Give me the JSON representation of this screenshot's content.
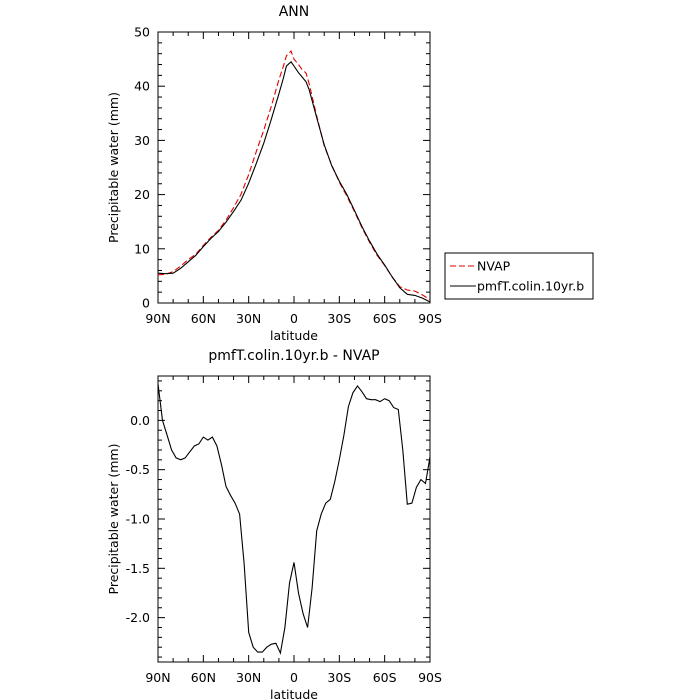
{
  "chart_data": [
    {
      "type": "line",
      "title": "ANN",
      "xlabel": "latitude",
      "ylabel": "Precipitable water  (mm)",
      "xlim": [
        90,
        -90
      ],
      "ylim": [
        0,
        50
      ],
      "x_ticks": [
        90,
        60,
        30,
        0,
        -30,
        -60,
        -90
      ],
      "x_tick_labels": [
        "90N",
        "60N",
        "30N",
        "0",
        "30S",
        "60S",
        "90S"
      ],
      "y_ticks": [
        0,
        10,
        20,
        30,
        40,
        50
      ],
      "y_tick_labels": [
        "0",
        "10",
        "20",
        "30",
        "40",
        "50"
      ],
      "legend": {
        "position": "right",
        "entries": [
          "NVAP",
          "pmfT.colin.10yr.b"
        ]
      },
      "series": [
        {
          "name": "NVAP",
          "color": "#e00000",
          "dash": "dashed",
          "x": [
            90,
            85,
            80,
            75,
            70,
            65,
            60,
            55,
            50,
            45,
            40,
            35,
            30,
            25,
            20,
            15,
            10,
            7,
            5,
            2,
            0,
            -3,
            -5,
            -8,
            -10,
            -15,
            -20,
            -25,
            -30,
            -35,
            -40,
            -45,
            -50,
            -55,
            -60,
            -65,
            -70,
            -75,
            -80,
            -85,
            -90
          ],
          "values": [
            5.2,
            5.3,
            5.8,
            6.8,
            8.0,
            9.0,
            10.6,
            12.1,
            13.4,
            15.3,
            17.6,
            20.1,
            23.7,
            27.9,
            31.9,
            36.3,
            41.2,
            43.7,
            45.6,
            46.5,
            45.0,
            44.0,
            43.2,
            42.4,
            40.5,
            34.5,
            29.0,
            25.4,
            22.3,
            19.7,
            16.9,
            13.9,
            11.2,
            8.8,
            6.9,
            4.8,
            3.0,
            2.4,
            2.2,
            1.5,
            0.6
          ]
        },
        {
          "name": "pmfT.colin.10yr.b",
          "color": "#000000",
          "dash": "solid",
          "x": [
            90,
            85,
            80,
            75,
            70,
            65,
            60,
            55,
            50,
            45,
            40,
            35,
            30,
            25,
            20,
            15,
            10,
            7,
            5,
            2,
            0,
            -3,
            -5,
            -8,
            -10,
            -15,
            -20,
            -25,
            -30,
            -35,
            -40,
            -45,
            -50,
            -55,
            -60,
            -65,
            -70,
            -75,
            -80,
            -85,
            -90
          ],
          "values": [
            5.5,
            5.4,
            5.5,
            6.4,
            7.6,
            8.8,
            10.4,
            11.9,
            13.2,
            14.9,
            16.9,
            19.0,
            22.1,
            25.7,
            29.5,
            33.9,
            38.6,
            41.5,
            43.7,
            44.5,
            43.7,
            42.5,
            41.8,
            40.8,
            39.4,
            34.2,
            29.2,
            25.3,
            22.5,
            20.0,
            17.1,
            14.1,
            11.4,
            9.0,
            7.0,
            4.8,
            2.8,
            1.6,
            1.4,
            0.9,
            0.2
          ]
        }
      ]
    },
    {
      "type": "line",
      "title": "pmfT.colin.10yr.b  -  NVAP",
      "xlabel": "latitude",
      "ylabel": "Precipitable water  (mm)",
      "xlim": [
        90,
        -90
      ],
      "ylim": [
        -2.45,
        0.45
      ],
      "x_ticks": [
        90,
        60,
        30,
        0,
        -30,
        -60,
        -90
      ],
      "x_tick_labels": [
        "90N",
        "60N",
        "30N",
        "0",
        "30S",
        "60S",
        "90S"
      ],
      "y_ticks": [
        0.0,
        -0.5,
        -1.0,
        -1.5,
        -2.0
      ],
      "y_tick_labels": [
        "0.0",
        "-0.5",
        "-1.0",
        "-1.5",
        "-2.0"
      ],
      "series": [
        {
          "color": "#000000",
          "dash": "solid",
          "x": [
            90,
            87,
            84,
            81,
            78,
            75,
            72,
            69,
            66,
            63,
            60,
            57,
            54,
            51,
            48,
            45,
            42,
            39,
            36,
            33,
            30,
            27,
            24,
            21,
            18,
            15,
            12,
            9,
            6,
            3,
            0,
            -3,
            -6,
            -9,
            -12,
            -15,
            -18,
            -21,
            -24,
            -27,
            -30,
            -33,
            -36,
            -39,
            -42,
            -45,
            -48,
            -51,
            -54,
            -57,
            -60,
            -63,
            -66,
            -69,
            -72,
            -75,
            -78,
            -81,
            -84,
            -87,
            -90
          ],
          "values": [
            0.37,
            0.0,
            -0.15,
            -0.3,
            -0.38,
            -0.4,
            -0.38,
            -0.32,
            -0.26,
            -0.24,
            -0.17,
            -0.2,
            -0.17,
            -0.26,
            -0.45,
            -0.67,
            -0.76,
            -0.84,
            -0.95,
            -1.45,
            -2.15,
            -2.3,
            -2.35,
            -2.35,
            -2.3,
            -2.27,
            -2.26,
            -2.36,
            -2.1,
            -1.65,
            -1.44,
            -1.75,
            -1.96,
            -2.1,
            -1.7,
            -1.12,
            -0.95,
            -0.84,
            -0.8,
            -0.62,
            -0.4,
            -0.15,
            0.14,
            0.28,
            0.35,
            0.29,
            0.22,
            0.21,
            0.21,
            0.19,
            0.22,
            0.2,
            0.13,
            0.11,
            -0.3,
            -0.85,
            -0.84,
            -0.68,
            -0.6,
            -0.64,
            -0.37
          ]
        }
      ]
    }
  ]
}
